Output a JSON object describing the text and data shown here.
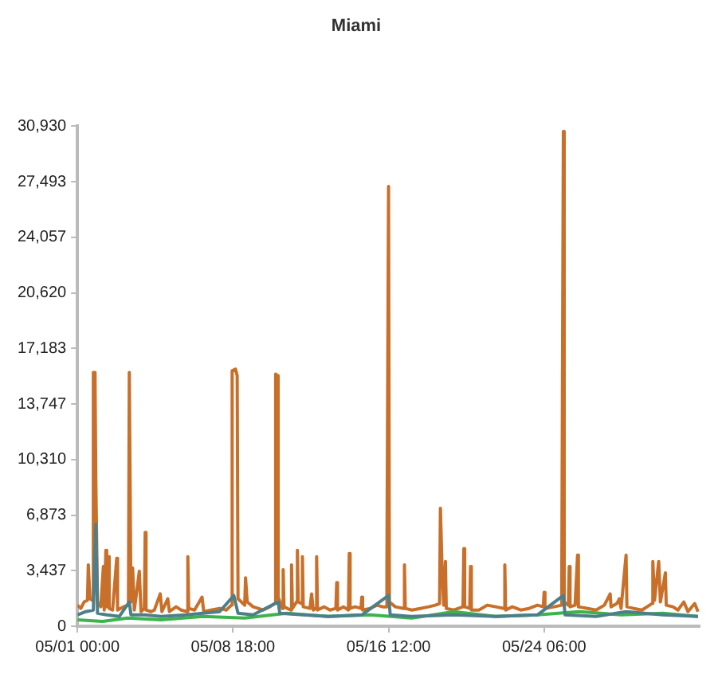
{
  "chart_data": {
    "type": "line",
    "title": "Miami",
    "xlim": [
      "--05-01T00:00",
      "--06-01T00:00"
    ],
    "xticks": [
      {
        "value": "--05-01T00:00",
        "label": "05/01 00:00"
      },
      {
        "value": "--05-08T18:00",
        "label": "05/08 18:00"
      },
      {
        "value": "--05-16T12:00",
        "label": "05/16 12:00"
      },
      {
        "value": "--05-24T06:00",
        "label": "05/24 06:00"
      }
    ],
    "ylim": [
      0,
      30930
    ],
    "yticks": [
      0,
      {
        "value": 3437,
        "label": "3,437"
      },
      {
        "value": 6873,
        "label": "6,873"
      },
      {
        "value": 10310,
        "label": "10,310"
      },
      {
        "value": 13747,
        "label": "13,747"
      },
      {
        "value": 17183,
        "label": "17,183"
      },
      {
        "value": 20620,
        "label": "20,620"
      },
      {
        "value": 24057,
        "label": "24,057"
      },
      {
        "value": 27493,
        "label": "27,493"
      },
      {
        "value": 30930,
        "label": "30,930"
      }
    ],
    "grid": false,
    "legend": false,
    "marker": "none",
    "series": [
      {
        "color": "#c8702a",
        "x": [
          "--05-01T00:00",
          "--05-01T04:00",
          "--05-01T08:00",
          "--05-01T12:00",
          "--05-01T13:00",
          "--05-01T15:00",
          "--05-01T18:00",
          "--05-01T19:00",
          "--05-01T21:00",
          "--05-01T22:00",
          "--05-01T23:00",
          "--05-02T00:00",
          "--05-02T04:00",
          "--05-02T07:00",
          "--05-02T08:00",
          "--05-02T10:00",
          "--05-02T11:00",
          "--05-02T13:00",
          "--05-02T14:00",
          "--05-02T18:00",
          "--05-02T23:00",
          "--05-03T00:00",
          "--05-03T07:00",
          "--05-03T13:00",
          "--05-03T14:00",
          "--05-03T15:00",
          "--05-03T16:00",
          "--05-03T18:00",
          "--05-03T20:00",
          "--05-04T02:00",
          "--05-04T04:00",
          "--05-04T08:00",
          "--05-04T09:00",
          "--05-04T10:00",
          "--05-04T16:00",
          "--05-04T20:00",
          "--05-05T03:00",
          "--05-05T05:00",
          "--05-05T12:00",
          "--05-05T14:00",
          "--05-05T22:00",
          "--05-06T04:00",
          "--05-06T11:00",
          "--05-06T12:00",
          "--05-06T13:00",
          "--05-06T20:00",
          "--05-07T05:00",
          "--05-07T07:00",
          "--05-07T16:00",
          "--05-08T02:00",
          "--05-08T10:00",
          "--05-08T16:00",
          "--05-08T17:00",
          "--05-08T21:00",
          "--05-08T23:00",
          "--05-09T00:00",
          "--05-09T08:00",
          "--05-09T09:00",
          "--05-09T11:00",
          "--05-09T18:00",
          "--05-10T06:00",
          "--05-10T14:00",
          "--05-10T20:00",
          "--05-10T21:00",
          "--05-10T23:00",
          "--05-11T00:00",
          "--05-11T05:00",
          "--05-11T06:00",
          "--05-11T07:00",
          "--05-11T15:00",
          "--05-11T16:00",
          "--05-11T17:00",
          "--05-11T22:00",
          "--05-11T23:00",
          "--05-12T00:00",
          "--05-12T04:00",
          "--05-12T05:00",
          "--05-12T06:00",
          "--05-12T14:00",
          "--05-12T16:00",
          "--05-12T18:00",
          "--05-12T21:00",
          "--05-12T22:00",
          "--05-12T23:00",
          "--05-13T07:00",
          "--05-13T14:00",
          "--05-13T21:00",
          "--05-13T22:00",
          "--05-13T23:00",
          "--05-14T06:00",
          "--05-14T12:00",
          "--05-14T13:00",
          "--05-14T14:00",
          "--05-14T20:00",
          "--05-15T03:00",
          "--05-15T04:00",
          "--05-15T05:00",
          "--05-15T14:00",
          "--05-15T22:00",
          "--05-16T05:00",
          "--05-16T09:00",
          "--05-16T10:00",
          "--05-16T12:00",
          "--05-16T13:00",
          "--05-16T20:00",
          "--05-17T06:00",
          "--05-17T07:00",
          "--05-17T08:00",
          "--05-17T16:00",
          "--05-18T02:00",
          "--05-18T12:00",
          "--05-18T20:00",
          "--05-19T01:00",
          "--05-19T02:00",
          "--05-19T04:00",
          "--05-19T06:00",
          "--05-19T08:00",
          "--05-19T09:00",
          "--05-19T18:00",
          "--05-20T05:00",
          "--05-20T06:00",
          "--05-20T07:00",
          "--05-20T13:00",
          "--05-20T14:00",
          "--05-20T15:00",
          "--05-21T00:00",
          "--05-21T10:00",
          "--05-21T20:00",
          "--05-22T06:00",
          "--05-22T07:00",
          "--05-22T08:00",
          "--05-22T16:00",
          "--05-23T02:00",
          "--05-23T12:00",
          "--05-23T22:00",
          "--05-24T05:00",
          "--05-24T06:00",
          "--05-24T07:00",
          "--05-24T18:00",
          "--05-25T03:00",
          "--05-25T05:00",
          "--05-25T06:00",
          "--05-25T11:00",
          "--05-25T12:00",
          "--05-25T13:00",
          "--05-25T19:00",
          "--05-25T22:00",
          "--05-25T23:00",
          "--05-26T10:00",
          "--05-26T20:00",
          "--05-27T06:00",
          "--05-27T13:00",
          "--05-27T14:00",
          "--05-27T21:00",
          "--05-28T00:00",
          "--05-28T02:00",
          "--05-28T08:00",
          "--05-28T09:00",
          "--05-28T17:00",
          "--05-29T03:00",
          "--05-29T15:00",
          "--05-29T16:00",
          "--05-29T18:00",
          "--05-29T23:00",
          "--05-30T01:00",
          "--05-30T07:00",
          "--05-30T08:00",
          "--05-30T16:00",
          "--05-30T22:00",
          "--05-31T05:00",
          "--05-31T10:00",
          "--05-31T18:00",
          "--05-31T22:00"
        ],
        "values": [
          1300,
          1100,
          1500,
          1600,
          3800,
          1700,
          1600,
          15700,
          15700,
          9000,
          9000,
          1500,
          1200,
          3700,
          1000,
          4700,
          1200,
          4300,
          1100,
          1000,
          4200,
          1000,
          1200,
          1300,
          15700,
          15700,
          1500,
          3600,
          1000,
          3400,
          900,
          1100,
          5800,
          1000,
          900,
          1000,
          2000,
          900,
          1700,
          900,
          1200,
          1000,
          900,
          4300,
          1100,
          1000,
          1800,
          900,
          1000,
          1100,
          1000,
          1300,
          15800,
          15900,
          15500,
          1700,
          1300,
          3000,
          1500,
          1200,
          1000,
          1200,
          1400,
          15600,
          15500,
          1800,
          1100,
          3500,
          1200,
          1000,
          3800,
          1100,
          1500,
          4700,
          1500,
          1400,
          4300,
          1200,
          1100,
          2000,
          1000,
          1100,
          4300,
          1000,
          1200,
          1000,
          1100,
          2700,
          1000,
          1200,
          1000,
          4500,
          1100,
          1200,
          1100,
          1800,
          1000,
          1100,
          1300,
          1200,
          1200,
          3600,
          27200,
          1500,
          1200,
          1100,
          3800,
          1100,
          1000,
          1100,
          1200,
          1300,
          1400,
          7300,
          3500,
          1300,
          4000,
          1100,
          1000,
          1200,
          4800,
          1200,
          1100,
          3700,
          1000,
          1000,
          1300,
          1200,
          1100,
          3800,
          1000,
          1200,
          1000,
          1100,
          1300,
          1200,
          2100,
          1100,
          1200,
          1300,
          30600,
          1500,
          1300,
          3700,
          1200,
          1300,
          4400,
          1200,
          1100,
          1000,
          1300,
          2000,
          1200,
          1400,
          1700,
          1100,
          4400,
          1200,
          1100,
          1000,
          1400,
          4000,
          1600,
          4000,
          1500,
          3300,
          1300,
          1200,
          1000,
          1500,
          900,
          1400,
          900
        ]
      },
      {
        "color": "#3cb44b",
        "x": [
          "--05-01T00:00",
          "--05-02T06:00",
          "--05-03T12:00",
          "--05-05T04:00",
          "--05-07T06:00",
          "--05-09T08:00",
          "--05-11T10:00",
          "--05-13T12:00",
          "--05-15T14:00",
          "--05-17T16:00",
          "--05-19T18:00",
          "--05-21T20:00",
          "--05-23T22:00",
          "--05-26T00:00",
          "--05-28T02:00",
          "--05-30T04:00",
          "--05-31T22:00"
        ],
        "values": [
          400,
          300,
          500,
          400,
          600,
          500,
          800,
          600,
          700,
          500,
          900,
          600,
          700,
          900,
          700,
          800,
          600
        ]
      },
      {
        "color": "#4d7f8a",
        "x": [
          "--05-01T00:00",
          "--05-01T10:00",
          "--05-01T19:00",
          "--05-01T22:00",
          "--05-02T00:00",
          "--05-02T11:00",
          "--05-03T02:00",
          "--05-03T14:00",
          "--05-03T16:00",
          "--05-04T08:00",
          "--05-05T04:00",
          "--05-06T10:00",
          "--05-07T06:00",
          "--05-08T02:00",
          "--05-08T19:00",
          "--05-09T00:00",
          "--05-09T18:00",
          "--05-11T00:00",
          "--05-11T02:00",
          "--05-12T06:00",
          "--05-13T12:00",
          "--05-15T04:00",
          "--05-16T12:00",
          "--05-16T14:00",
          "--05-17T16:00",
          "--05-19T18:00",
          "--05-21T20:00",
          "--05-23T22:00",
          "--05-25T05:00",
          "--05-25T07:00",
          "--05-26T20:00",
          "--05-28T08:00",
          "--05-30T04:00",
          "--05-31T22:00"
        ],
        "values": [
          700,
          900,
          1000,
          6300,
          800,
          700,
          600,
          1500,
          700,
          700,
          600,
          700,
          800,
          900,
          1900,
          800,
          700,
          1500,
          800,
          700,
          600,
          700,
          1900,
          700,
          600,
          700,
          600,
          700,
          1900,
          700,
          600,
          900,
          700,
          600
        ]
      }
    ]
  }
}
